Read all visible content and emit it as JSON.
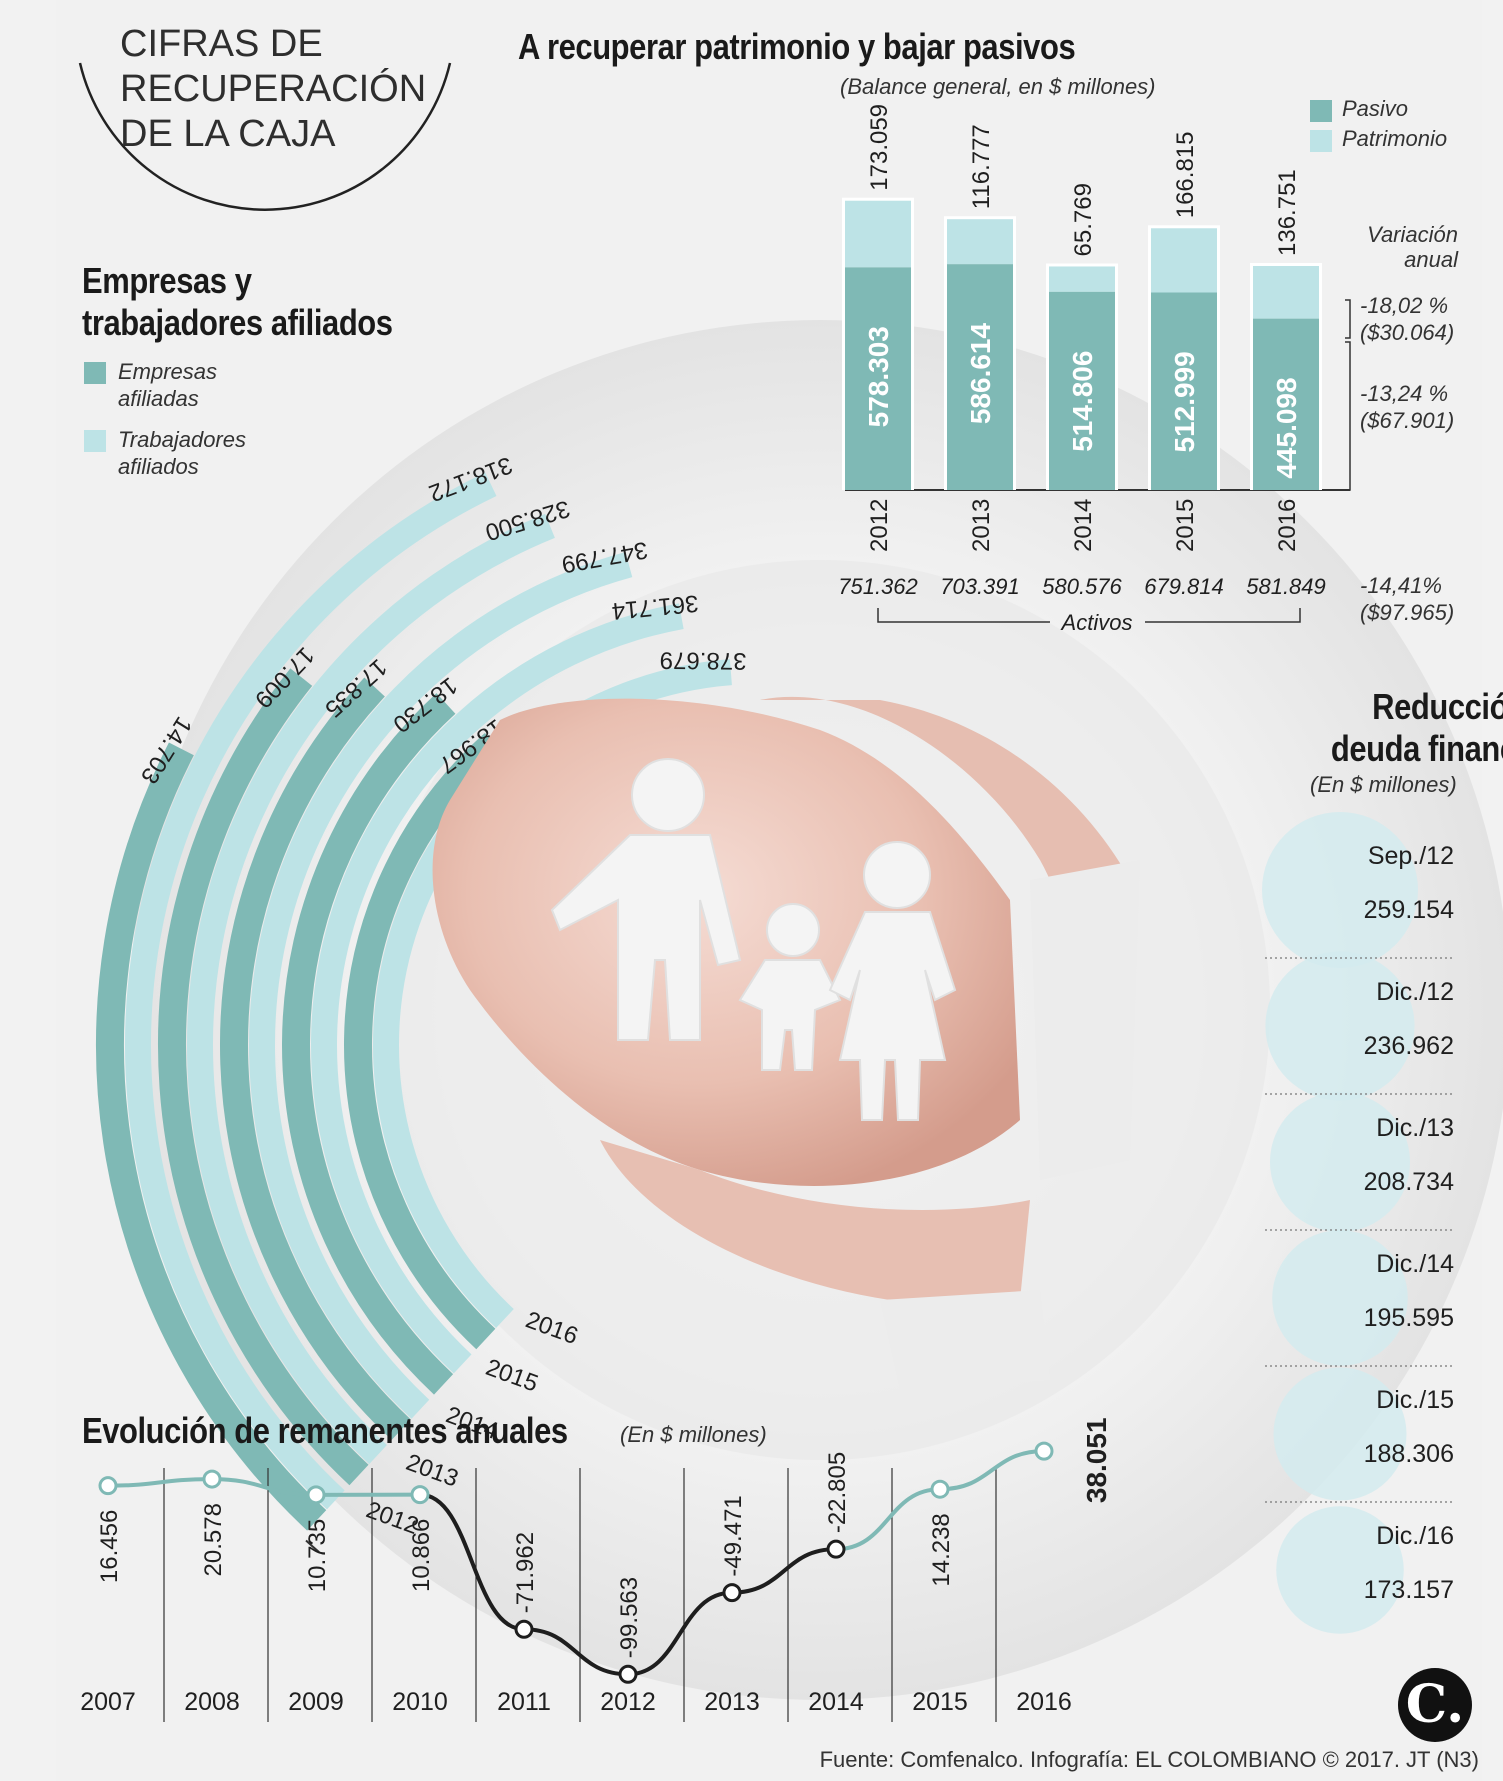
{
  "page": {
    "main_title": [
      "CIFRAS DE",
      "RECUPERACIÓN",
      "DE LA CAJA"
    ],
    "source": "Fuente: Comfenalco. Infografía: EL COLOMBIANO © 2017. JT (N3)",
    "logo": "C."
  },
  "colors": {
    "dark_teal": "#7fb9b5",
    "light_teal": "#bde3e6",
    "line_dark": "#1e1e1e",
    "bubble": "#d3ebee"
  },
  "chart_data": [
    {
      "id": "balance",
      "type": "bar",
      "title": "A recuperar patrimonio y bajar pasivos",
      "subtitle": "(Balance general, en $ millones)",
      "categories": [
        "2012",
        "2013",
        "2014",
        "2015",
        "2016"
      ],
      "series": [
        {
          "name": "Pasivo",
          "values": [
            "578.303",
            "586.614",
            "514.806",
            "512.999",
            "445.098"
          ]
        },
        {
          "name": "Patrimonio",
          "values": [
            "173.059",
            "116.777",
            "65.769",
            "166.815",
            "136.751"
          ]
        }
      ],
      "activos": [
        "751.362",
        "703.391",
        "580.576",
        "679.814",
        "581.849"
      ],
      "activos_label": "Activos",
      "variacion_title": [
        "Variación",
        "anual"
      ],
      "variacion": [
        {
          "pct": "-18,02 %",
          "amt": "($30.064)"
        },
        {
          "pct": "-13,24 %",
          "amt": "($67.901)"
        },
        {
          "pct": "-14,41%",
          "amt": "($97.965)"
        }
      ],
      "legend_position": "top-right"
    },
    {
      "id": "afiliados",
      "type": "bar",
      "title": [
        "Empresas y",
        "trabajadores afiliados"
      ],
      "categories": [
        "2012",
        "2013",
        "2014",
        "2015",
        "2016"
      ],
      "series": [
        {
          "name": "Empresas afiliadas",
          "values": [
            "14.703",
            "17.009",
            "17.835",
            "18.730",
            "18.967"
          ]
        },
        {
          "name": "Trabajadores afiliados",
          "values": [
            "318.172",
            "328.500",
            "347.799",
            "361.714",
            "378.679"
          ]
        }
      ],
      "legend": [
        [
          "Empresas",
          "afiliadas"
        ],
        [
          "Trabajadores",
          "afiliados"
        ]
      ]
    },
    {
      "id": "deuda",
      "type": "table",
      "title": [
        "Reducción de",
        "deuda financiera"
      ],
      "subtitle": "(En $ millones)",
      "rows": [
        {
          "label": "Sep./12",
          "value": "259.154",
          "num": 259154
        },
        {
          "label": "Dic./12",
          "value": "236.962",
          "num": 236962
        },
        {
          "label": "Dic./13",
          "value": "208.734",
          "num": 208734
        },
        {
          "label": "Dic./14",
          "value": "195.595",
          "num": 195595
        },
        {
          "label": "Dic./15",
          "value": "188.306",
          "num": 188306
        },
        {
          "label": "Dic./16",
          "value": "173.157",
          "num": 173157
        }
      ]
    },
    {
      "id": "remanentes",
      "type": "line",
      "title": "Evolución de remanentes anuales",
      "subtitle": "(En $ millones)",
      "x": [
        "2007",
        "2008",
        "2009",
        "2010",
        "2011",
        "2012",
        "2013",
        "2014",
        "2015",
        "2016"
      ],
      "y": [
        16456,
        20578,
        10735,
        10866,
        -71962,
        -99563,
        -49471,
        -22805,
        14238,
        38051
      ],
      "labels": [
        "16.456",
        "20.578",
        "10.735",
        "10.866",
        "-71.962",
        "-99.563",
        "-49.471",
        "-22.805",
        "14.238",
        "38.051"
      ]
    }
  ]
}
